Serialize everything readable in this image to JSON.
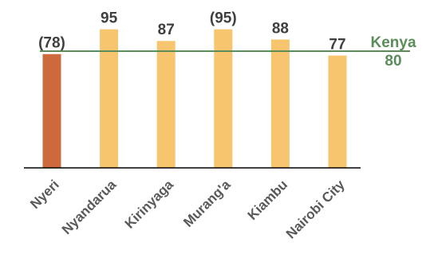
{
  "chart_data": {
    "type": "bar",
    "categories": [
      "Nyeri",
      "Nyandarua",
      "Kirinyaga",
      "Murang'a",
      "Kiambu",
      "Nairobi City"
    ],
    "values": [
      78,
      95,
      87,
      95,
      88,
      77
    ],
    "value_labels": [
      "(78)",
      "95",
      "87",
      "(95)",
      "88",
      "77"
    ],
    "highlight_index": 0,
    "colors": {
      "highlight": "#cc6a3d",
      "default": "#f6c56d",
      "reference": "#5b8c5a",
      "axis": "#000000"
    },
    "reference_line": {
      "label": "Kenya",
      "value": 80,
      "value_label": "80"
    },
    "ylim": [
      0,
      97
    ],
    "grid": false,
    "xlabel": "",
    "ylabel": ""
  }
}
